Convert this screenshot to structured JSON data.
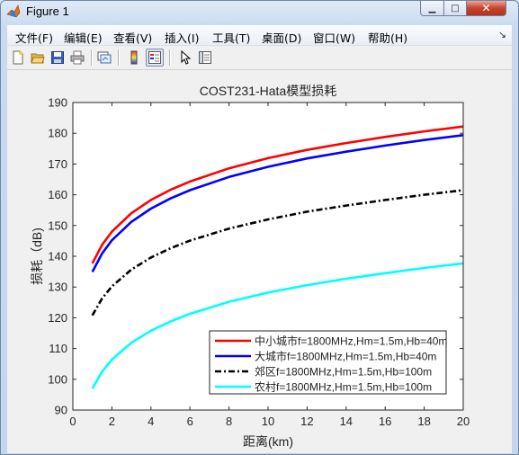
{
  "window": {
    "title": "Figure 1",
    "controls": {
      "minimize": "▁",
      "maximize": "□",
      "close": "✕"
    }
  },
  "menubar": {
    "items": [
      {
        "label": "文件(F)"
      },
      {
        "label": "编辑(E)"
      },
      {
        "label": "查看(V)"
      },
      {
        "label": "插入(I)"
      },
      {
        "label": "工具(T)"
      },
      {
        "label": "桌面(D)"
      },
      {
        "label": "窗口(W)"
      },
      {
        "label": "帮助(H)"
      }
    ],
    "pin": "↘"
  },
  "toolbar": {
    "icons": [
      "new-figure-icon",
      "open-file-icon",
      "save-icon",
      "print-icon",
      "link-plot-icon",
      "colorbar-icon",
      "legend-icon",
      "pointer-icon",
      "property-editor-icon"
    ]
  },
  "chart_data": {
    "type": "line",
    "title": "COST231-Hata模型损耗",
    "xlabel": "距离(km)",
    "ylabel": "损耗（dB)",
    "xlim": [
      0,
      20
    ],
    "ylim": [
      90,
      190
    ],
    "xticks": [
      "0",
      "2",
      "4",
      "6",
      "8",
      "10",
      "12",
      "14",
      "16",
      "18",
      "20"
    ],
    "yticks": [
      "90",
      "100",
      "110",
      "120",
      "130",
      "140",
      "150",
      "160",
      "170",
      "180",
      "190"
    ],
    "grid": false,
    "legend_position": "bottom-right",
    "x": [
      1,
      1.5,
      2,
      3,
      4,
      5,
      6,
      8,
      10,
      12,
      14,
      16,
      18,
      20
    ],
    "series": [
      {
        "name": "中小城市f=1800MHz,Hm=1.5m,Hb=40m",
        "color": "#ff0000",
        "dash": "solid",
        "values": [
          137.7,
          143.7,
          148.0,
          154.0,
          158.3,
          161.6,
          164.3,
          168.6,
          171.9,
          174.6,
          176.8,
          178.8,
          180.6,
          182.2
        ]
      },
      {
        "name": "大城市f=1800MHz,Hm=1.5m,Hb=40m",
        "color": "#0000ff",
        "dash": "solid",
        "values": [
          134.9,
          140.9,
          145.2,
          151.2,
          155.5,
          158.8,
          161.5,
          165.8,
          169.1,
          171.8,
          174.0,
          176.0,
          177.8,
          179.4
        ]
      },
      {
        "name": "郊区f=1800MHz,Hm=1.5m,Hb=100m",
        "color": "#000000",
        "dash": "dashdot",
        "values": [
          120.8,
          126.3,
          130.2,
          135.7,
          139.6,
          142.6,
          145.1,
          149.0,
          152.0,
          154.5,
          156.5,
          158.3,
          160.0,
          161.5
        ]
      },
      {
        "name": "农村f=1800MHz,Hm=1.5m,Hb=100m",
        "color": "#00ffff",
        "dash": "solid",
        "values": [
          97.0,
          102.5,
          106.4,
          111.9,
          115.8,
          118.8,
          121.3,
          125.2,
          128.2,
          130.6,
          132.7,
          134.5,
          136.2,
          137.7
        ]
      }
    ]
  }
}
